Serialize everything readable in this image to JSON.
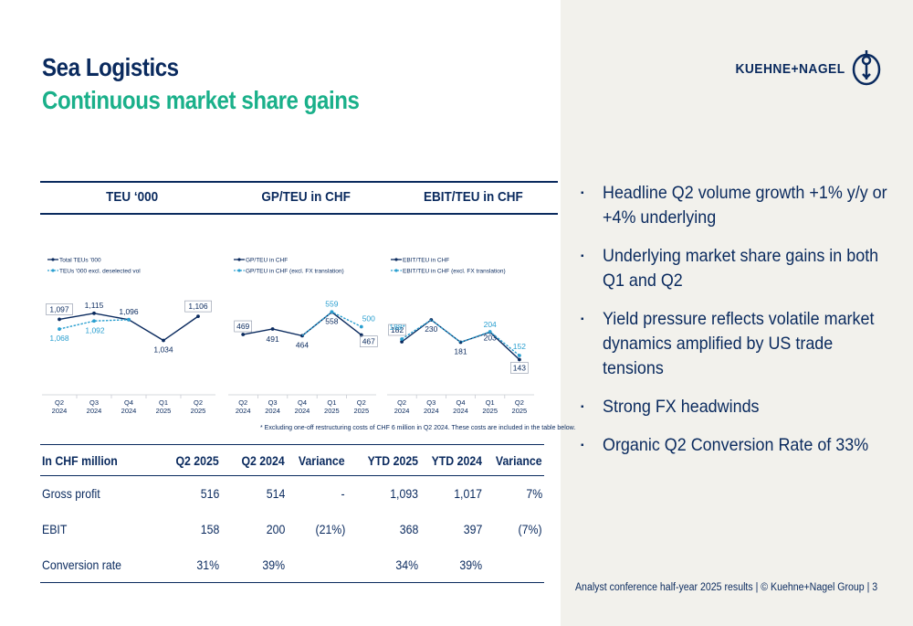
{
  "title": "Sea Logistics",
  "subtitle": "Continuous market share gains",
  "logo_text": "KUEHNE+NAGEL",
  "column_headers": [
    "TEU ‘000",
    "GP/TEU in CHF",
    "EBIT/TEU in CHF"
  ],
  "chart_data": [
    {
      "type": "line",
      "title": "TEU ‘000",
      "categories": [
        "Q2\n2024",
        "Q3\n2024",
        "Q4\n2024",
        "Q1\n2025",
        "Q2\n2025"
      ],
      "series": [
        {
          "name": "Total TEUs '000",
          "values": [
            1097,
            1115,
            1096,
            1034,
            1106
          ],
          "color": "#0a2a5e",
          "labels": [
            "1,097",
            "1,115",
            "1,096",
            "1,034",
            "1,106"
          ]
        },
        {
          "name": "TEUs '000 excl. deselected vol",
          "values": [
            1068,
            1092,
            1096,
            null,
            null
          ],
          "color": "#2a9fd0",
          "dashed": true,
          "labels": [
            "1,068",
            "1,092",
            "",
            "",
            ""
          ]
        }
      ],
      "ylim": [
        1000,
        1150
      ]
    },
    {
      "type": "line",
      "title": "GP/TEU in CHF",
      "categories": [
        "Q2\n2024",
        "Q3\n2024",
        "Q4\n2024",
        "Q1\n2025",
        "Q2\n2025"
      ],
      "series": [
        {
          "name": "GP/TEU in CHF",
          "values": [
            469,
            491,
            464,
            558,
            467
          ],
          "color": "#0a2a5e",
          "labels": [
            "469",
            "491",
            "464",
            "558",
            "467"
          ]
        },
        {
          "name": "GP/TEU in CHF (excl. FX translation)",
          "values": [
            null,
            null,
            null,
            559,
            500
          ],
          "color": "#2a9fd0",
          "dashed": true,
          "labels": [
            "",
            "",
            "",
            "559",
            "500"
          ]
        }
      ],
      "ylim": [
        400,
        600
      ]
    },
    {
      "type": "line",
      "title": "EBIT/TEU in CHF",
      "categories": [
        "Q2\n2024",
        "Q3\n2024",
        "Q4\n2024",
        "Q1\n2025",
        "Q2\n2025"
      ],
      "series": [
        {
          "name": "EBIT/TEU in CHF",
          "values": [
            182,
            230,
            181,
            203,
            143
          ],
          "color": "#0a2a5e",
          "labels": [
            "182",
            "230",
            "181",
            "203",
            "143"
          ]
        },
        {
          "name": "EBIT/TEU in CHF (excl. FX translation)",
          "values": [
            188,
            null,
            null,
            204,
            152
          ],
          "color": "#2a9fd0",
          "dashed": true,
          "labels": [
            "188*",
            "",
            "",
            "204",
            "152"
          ]
        }
      ],
      "ylim": [
        120,
        250
      ]
    }
  ],
  "footnote": "* Excluding one-off restructuring costs of CHF 6 million in Q2 2024. These costs are included in the table below.",
  "table": {
    "headers": [
      "In CHF million",
      "Q2 2025",
      "Q2 2024",
      "Variance",
      "YTD 2025",
      "YTD 2024",
      "Variance"
    ],
    "rows": [
      [
        "Gross profit",
        "516",
        "514",
        "-",
        "1,093",
        "1,017",
        "7%"
      ],
      [
        "EBIT",
        "158",
        "200",
        "(21%)",
        "368",
        "397",
        "(7%)"
      ],
      [
        "Conversion rate",
        "31%",
        "39%",
        "",
        "34%",
        "39%",
        ""
      ]
    ]
  },
  "bullets": [
    "Headline Q2 volume growth +1% y/y or +4% underlying",
    "Underlying market share gains in both Q1 and Q2",
    "Yield pressure reflects volatile market dynamics amplified by US trade tensions",
    "Strong FX headwinds",
    "Organic Q2 Conversion Rate of 33%"
  ],
  "bullet_glyph": "▪",
  "footer": "Analyst conference half-year 2025 results | © Kuehne+Nagel Group | 3",
  "colors": {
    "navy": "#0a2a5e",
    "green": "#1ab08a",
    "light_blue": "#2a9fd0",
    "panel": "#f2f1ec"
  }
}
